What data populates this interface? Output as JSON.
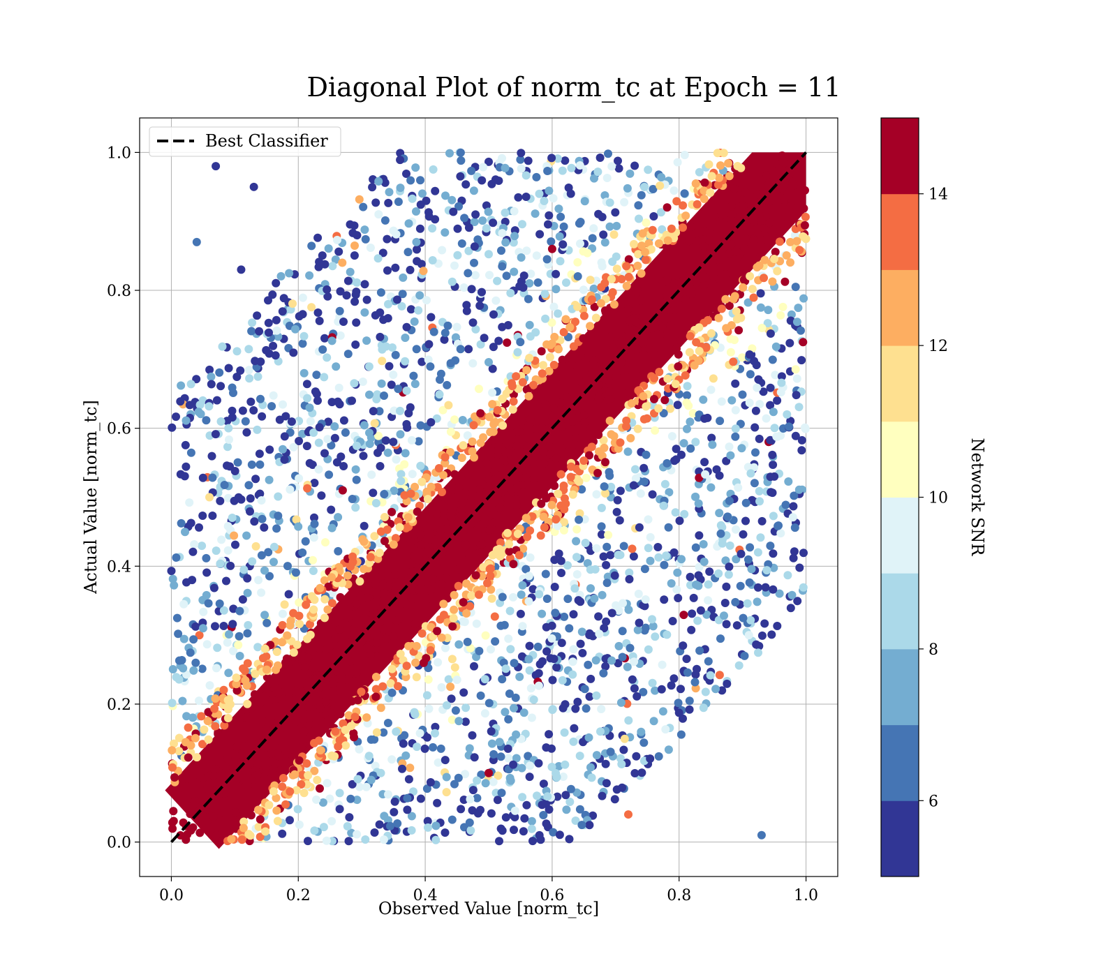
{
  "chart_data": {
    "type": "scatter",
    "title": "Diagonal Plot of norm_tc at Epoch = 11",
    "xlabel": "Observed Value [norm_tc]",
    "ylabel": "Actual Value [norm_tc]",
    "xlim": [
      -0.05,
      1.05
    ],
    "ylim": [
      -0.05,
      1.05
    ],
    "xticks": [
      "0.0",
      "0.2",
      "0.4",
      "0.6",
      "0.8",
      "1.0"
    ],
    "yticks": [
      "0.0",
      "0.2",
      "0.4",
      "0.6",
      "0.8",
      "1.0"
    ],
    "xtick_values": [
      0,
      0.2,
      0.4,
      0.6,
      0.8,
      1.0
    ],
    "ytick_values": [
      0,
      0.2,
      0.4,
      0.6,
      0.8,
      1.0
    ],
    "grid": true,
    "legend": {
      "placement": "top-left",
      "entries": [
        {
          "label": "Best Classifier",
          "style": "dashed",
          "color": "#000000"
        }
      ]
    },
    "reference_line": {
      "name": "Best Classifier",
      "x": [
        0,
        1
      ],
      "y": [
        0,
        1
      ]
    },
    "colorbar": {
      "label": "Network SNR",
      "range": [
        5,
        15
      ],
      "ticks": [
        6,
        8,
        10,
        12,
        14
      ],
      "tick_labels": [
        "6",
        "8",
        "10",
        "12",
        "14"
      ],
      "colors": [
        "#313695",
        "#4575b4",
        "#74add1",
        "#abd9e9",
        "#e0f3f8",
        "#ffffbf",
        "#fee090",
        "#fdae61",
        "#f46d43",
        "#a50026"
      ]
    },
    "points": [
      {
        "x": 0.04,
        "y": 0.87,
        "snr": 6.5
      },
      {
        "x": 0.11,
        "y": 0.83,
        "snr": 5.5
      },
      {
        "x": 0.13,
        "y": 0.95,
        "snr": 5.5
      },
      {
        "x": 0.07,
        "y": 0.98,
        "snr": 5.5
      },
      {
        "x": 0.06,
        "y": 0.5,
        "snr": 11.5
      },
      {
        "x": 0.09,
        "y": 0.6,
        "snr": 8.5
      },
      {
        "x": 0.05,
        "y": 0.31,
        "snr": 7.5
      },
      {
        "x": 0.97,
        "y": 0.62,
        "snr": 8.5
      },
      {
        "x": 0.93,
        "y": 0.01,
        "snr": 6.5
      },
      {
        "x": 0.95,
        "y": 0.53,
        "snr": 5.5
      },
      {
        "x": 0.91,
        "y": 0.3,
        "snr": 9.5
      },
      {
        "x": 0.5,
        "y": 0.1,
        "snr": 14.5
      },
      {
        "x": 0.27,
        "y": 0.51,
        "snr": 14.5
      },
      {
        "x": 0.72,
        "y": 0.04,
        "snr": 13.5
      },
      {
        "x": 0.6,
        "y": 0.86,
        "snr": 14.5
      }
    ]
  }
}
